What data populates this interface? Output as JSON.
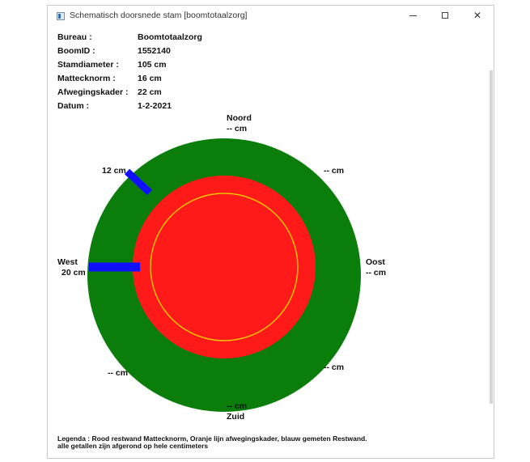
{
  "window": {
    "title": "Schematisch doorsnede stam [boomtotaalzorg]",
    "controls": [
      "minimize-icon",
      "maximize-icon",
      "close-icon"
    ],
    "close_glyph": "✕"
  },
  "info": [
    {
      "label": "Bureau :",
      "value": "Boomtotaalzorg"
    },
    {
      "label": "BoomID :",
      "value": "1552140"
    },
    {
      "label": "Stamdiameter :",
      "value": "105 cm"
    },
    {
      "label": "Mattecknorm :",
      "value": "16 cm"
    },
    {
      "label": "Afwegingskader :",
      "value": "22 cm"
    },
    {
      "label": "Datum :",
      "value": "1-2-2021"
    }
  ],
  "diagram": {
    "colors": {
      "outer": "#0a7d0a",
      "inner": "#ff1a1a",
      "ring": "#f2c400",
      "measure": "#1010ff"
    },
    "north": {
      "name": "Noord",
      "value": "-- cm"
    },
    "south": {
      "name": "Zuid",
      "value": "-- cm"
    },
    "east": {
      "name": "Oost",
      "value": "-- cm"
    },
    "west": {
      "name": "West",
      "value": "20 cm"
    },
    "northwest": {
      "value": "12 cm"
    },
    "northeast": {
      "value": "-- cm"
    },
    "southwest": {
      "value": "-- cm"
    },
    "southeast": {
      "value": "-- cm"
    }
  },
  "legend": {
    "line1": "Legenda : Rood restwand Mattecknorm, Oranje lijn afwegingskader, blauw gemeten Restwand.",
    "line2": "alle getallen zijn afgerond op hele centimeters"
  }
}
